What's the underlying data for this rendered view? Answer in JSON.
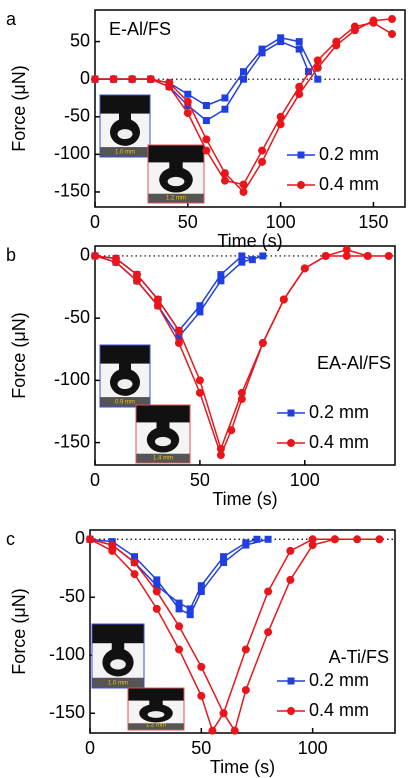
{
  "chart_data": [
    {
      "type": "line",
      "panel_label": "a",
      "annotation": "E-Al/FS",
      "xlabel": "Time (s)",
      "ylabel": "Force (μN)",
      "xlim": [
        0,
        167
      ],
      "ylim": [
        -170,
        92
      ],
      "xticks": [
        0,
        50,
        100,
        150
      ],
      "yticks": [
        -150,
        -100,
        -50,
        0,
        50
      ],
      "zero_line": true,
      "legend": "lower right",
      "insets": [
        {
          "label": "1.0 mm",
          "color": "#3a4fd8"
        },
        {
          "label": "1.2 mm",
          "color": "#e05050"
        }
      ],
      "series": [
        {
          "name": "0.2 mm",
          "color": "#1f3fe0",
          "marker": "square",
          "runs": [
            {
              "x": [
                0,
                10,
                20,
                30,
                40,
                50,
                60,
                70,
                80,
                90,
                100,
                110,
                120
              ],
              "values": [
                0,
                0,
                0,
                0,
                -5,
                -20,
                -35,
                -25,
                10,
                40,
                55,
                50,
                0
              ]
            },
            {
              "x": [
                0,
                10,
                20,
                30,
                40,
                50,
                60,
                70,
                80,
                90,
                100,
                110,
                115
              ],
              "values": [
                0,
                0,
                0,
                0,
                -10,
                -35,
                -55,
                -40,
                0,
                35,
                50,
                40,
                10
              ]
            }
          ]
        },
        {
          "name": "0.4 mm",
          "color": "#e8161b",
          "marker": "circle",
          "runs": [
            {
              "x": [
                0,
                10,
                20,
                30,
                40,
                50,
                60,
                70,
                80,
                90,
                100,
                110,
                120,
                130,
                140,
                150,
                160
              ],
              "values": [
                0,
                0,
                0,
                0,
                -5,
                -30,
                -80,
                -125,
                -150,
                -110,
                -60,
                -20,
                15,
                45,
                65,
                78,
                80
              ]
            },
            {
              "x": [
                0,
                10,
                20,
                30,
                40,
                50,
                60,
                70,
                80,
                90,
                100,
                110,
                120,
                130,
                140,
                150,
                160
              ],
              "values": [
                0,
                0,
                0,
                0,
                -10,
                -45,
                -95,
                -135,
                -140,
                -95,
                -50,
                -10,
                25,
                50,
                70,
                75,
                60
              ]
            }
          ]
        }
      ]
    },
    {
      "type": "line",
      "panel_label": "b",
      "annotation": "EA-Al/FS",
      "xlabel": "Time (s)",
      "ylabel": "Force (μN)",
      "xlim": [
        0,
        143
      ],
      "ylim": [
        -168,
        8
      ],
      "xticks": [
        0,
        50,
        100
      ],
      "yticks": [
        -150,
        -100,
        -50,
        0
      ],
      "zero_line": true,
      "legend": "lower right",
      "insets": [
        {
          "label": "0.9 mm",
          "color": "#3a4fd8"
        },
        {
          "label": "1.4 mm",
          "color": "#e05050"
        }
      ],
      "series": [
        {
          "name": "0.2 mm",
          "color": "#1f3fe0",
          "marker": "square",
          "runs": [
            {
              "x": [
                0,
                10,
                20,
                30,
                40,
                50,
                60,
                70,
                75
              ],
              "values": [
                0,
                -2,
                -15,
                -35,
                -60,
                -40,
                -15,
                0,
                -3
              ]
            },
            {
              "x": [
                0,
                10,
                20,
                30,
                40,
                50,
                60,
                70,
                80
              ],
              "values": [
                0,
                -5,
                -20,
                -40,
                -65,
                -45,
                -20,
                -5,
                0
              ]
            }
          ]
        },
        {
          "name": "0.4 mm",
          "color": "#e8161b",
          "marker": "circle",
          "runs": [
            {
              "x": [
                0,
                10,
                20,
                30,
                40,
                50,
                60,
                70,
                80,
                90,
                100,
                110,
                120,
                130,
                140
              ],
              "values": [
                0,
                -2,
                -15,
                -35,
                -60,
                -100,
                -155,
                -110,
                -70,
                -35,
                -10,
                0,
                0,
                0,
                0
              ]
            },
            {
              "x": [
                0,
                10,
                20,
                30,
                40,
                50,
                60,
                65,
                70,
                80,
                90,
                100,
                110,
                120,
                130
              ],
              "values": [
                0,
                -5,
                -20,
                -40,
                -70,
                -110,
                -160,
                -140,
                -115,
                -70,
                -35,
                -10,
                0,
                5,
                0
              ]
            }
          ]
        }
      ]
    },
    {
      "type": "line",
      "panel_label": "c",
      "annotation": "A-Ti/FS",
      "xlabel": "Time (s)",
      "ylabel": "Force (μN)",
      "xlim": [
        0,
        137
      ],
      "ylim": [
        -167,
        8
      ],
      "xticks": [
        0,
        50,
        100
      ],
      "yticks": [
        -150,
        -100,
        -50,
        0
      ],
      "zero_line": true,
      "legend": "lower right",
      "insets": [
        {
          "label": "1.0 mm",
          "color": "#3a4fd8"
        },
        {
          "label": "1.2 mm",
          "color": "#e05050"
        }
      ],
      "series": [
        {
          "name": "0.2 mm",
          "color": "#1f3fe0",
          "marker": "square",
          "runs": [
            {
              "x": [
                0,
                10,
                20,
                30,
                40,
                45,
                50,
                60,
                70,
                80
              ],
              "values": [
                0,
                -2,
                -15,
                -35,
                -60,
                -65,
                -45,
                -20,
                -5,
                0
              ]
            },
            {
              "x": [
                0,
                10,
                20,
                30,
                40,
                45,
                50,
                60,
                70,
                75
              ],
              "values": [
                0,
                -5,
                -20,
                -40,
                -55,
                -60,
                -40,
                -15,
                -3,
                0
              ]
            }
          ]
        },
        {
          "name": "0.4 mm",
          "color": "#e8161b",
          "marker": "circle",
          "runs": [
            {
              "x": [
                0,
                10,
                20,
                30,
                40,
                50,
                60,
                65,
                70,
                80,
                90,
                100,
                110,
                120,
                130
              ],
              "values": [
                0,
                -5,
                -20,
                -45,
                -75,
                -110,
                -150,
                -165,
                -130,
                -80,
                -35,
                -5,
                0,
                0,
                0
              ]
            },
            {
              "x": [
                0,
                10,
                20,
                30,
                40,
                50,
                55,
                60,
                70,
                80,
                90,
                100,
                110
              ],
              "values": [
                0,
                -10,
                -30,
                -60,
                -95,
                -135,
                -165,
                -150,
                -95,
                -45,
                -10,
                0,
                0
              ]
            }
          ]
        }
      ]
    }
  ]
}
